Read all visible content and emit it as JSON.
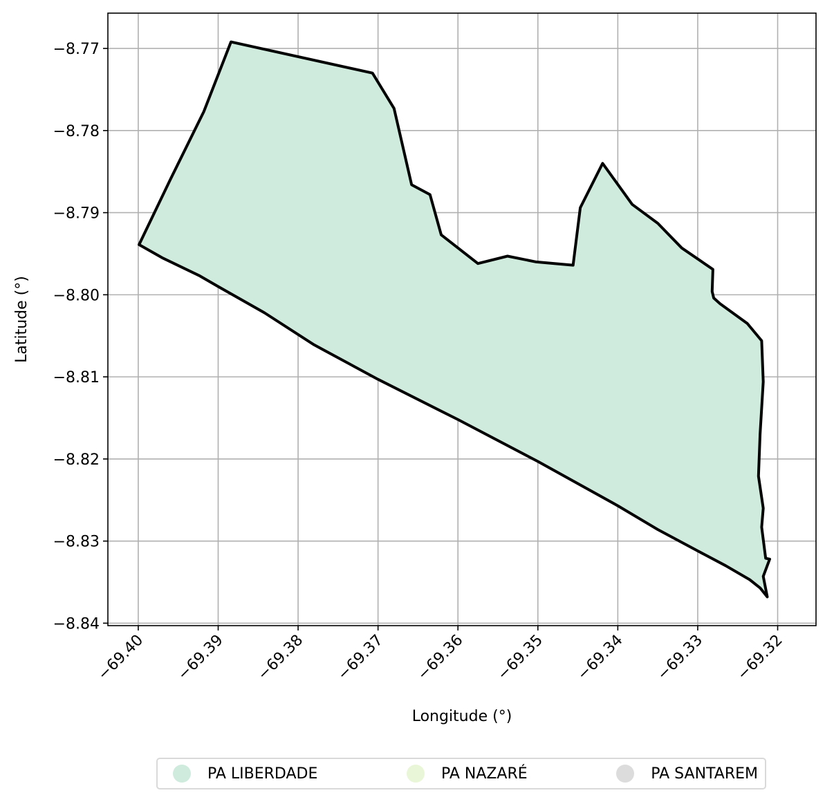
{
  "axes": {
    "xlabel": "Longitude (°)",
    "ylabel": "Latitude (°)",
    "xlim": [
      -69.4038,
      -69.3152
    ],
    "ylim": [
      -8.8403,
      -8.7657
    ],
    "xticks": [
      -69.4,
      -69.39,
      -69.38,
      -69.37,
      -69.36,
      -69.35,
      -69.34,
      -69.33,
      -69.32
    ],
    "xtick_labels": [
      "−69.40",
      "−69.39",
      "−69.38",
      "−69.37",
      "−69.36",
      "−69.35",
      "−69.34",
      "−69.33",
      "−69.32"
    ],
    "yticks": [
      -8.77,
      -8.78,
      -8.79,
      -8.8,
      -8.81,
      -8.82,
      -8.83,
      -8.84
    ],
    "ytick_labels": [
      "−8.77",
      "−8.78",
      "−8.79",
      "−8.80",
      "−8.81",
      "−8.82",
      "−8.83",
      "−8.84"
    ],
    "grid": true
  },
  "map_data": {
    "feature": "PA LIBERDADE",
    "fill_color": "#cfebdd",
    "outline_color": "#000000",
    "polygon": [
      [
        -69.3999,
        -8.7939
      ],
      [
        -69.397,
        -8.7955
      ],
      [
        -69.3923,
        -8.7977
      ],
      [
        -69.39,
        -8.799
      ],
      [
        -69.3842,
        -8.8022
      ],
      [
        -69.378,
        -8.8061
      ],
      [
        -69.37,
        -8.8103
      ],
      [
        -69.36,
        -8.8152
      ],
      [
        -69.35,
        -8.8203
      ],
      [
        -69.34,
        -8.8257
      ],
      [
        -69.335,
        -8.8286
      ],
      [
        -69.33,
        -8.8312
      ],
      [
        -69.3265,
        -8.833
      ],
      [
        -69.3235,
        -8.8347
      ],
      [
        -69.3222,
        -8.8357
      ],
      [
        -69.3213,
        -8.8368
      ],
      [
        -69.3218,
        -8.8343
      ],
      [
        -69.321,
        -8.8322
      ],
      [
        -69.3215,
        -8.8321
      ],
      [
        -69.322,
        -8.8283
      ],
      [
        -69.3218,
        -8.826
      ],
      [
        -69.3224,
        -8.8221
      ],
      [
        -69.3222,
        -8.817
      ],
      [
        -69.3218,
        -8.8106
      ],
      [
        -69.322,
        -8.8056
      ],
      [
        -69.3238,
        -8.8035
      ],
      [
        -69.3272,
        -8.8011
      ],
      [
        -69.328,
        -8.8004
      ],
      [
        -69.3282,
        -8.7996
      ],
      [
        -69.3281,
        -8.7969
      ],
      [
        -69.332,
        -8.7943
      ],
      [
        -69.335,
        -8.7913
      ],
      [
        -69.3382,
        -8.789
      ],
      [
        -69.3419,
        -8.784
      ],
      [
        -69.3447,
        -8.7894
      ],
      [
        -69.3456,
        -8.7964
      ],
      [
        -69.3502,
        -8.796
      ],
      [
        -69.3538,
        -8.7953
      ],
      [
        -69.3575,
        -8.7962
      ],
      [
        -69.3621,
        -8.7927
      ],
      [
        -69.3635,
        -8.7878
      ],
      [
        -69.3658,
        -8.7866
      ],
      [
        -69.368,
        -8.7773
      ],
      [
        -69.3707,
        -8.773
      ],
      [
        -69.3884,
        -8.7692
      ],
      [
        -69.3918,
        -8.7777
      ],
      [
        -69.396,
        -8.786
      ],
      [
        -69.3999,
        -8.7939
      ]
    ]
  },
  "legend": {
    "items": [
      {
        "label": "PA LIBERDADE",
        "color": "#cfebdd"
      },
      {
        "label": "PA NAZARÉ",
        "color": "#eaf6d8"
      },
      {
        "label": "PA SANTAREM",
        "color": "#dcdcdc"
      }
    ]
  }
}
